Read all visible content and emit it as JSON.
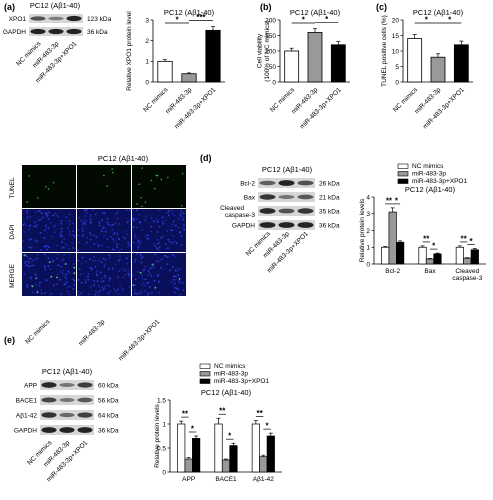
{
  "figure": {
    "panel_labels": [
      "(a)",
      "(b)",
      "(c)",
      "(d)",
      "(e)"
    ],
    "cell_line": "PC12 (Aβ1-40)",
    "group_labels": [
      "NC mimics",
      "miR-483-3p",
      "miR-483-3p+XPO1"
    ],
    "fluorescence": {
      "title": "PC12 (Aβ1-40)",
      "rows": [
        "TUNEL",
        "DAPI",
        "MERGE"
      ]
    },
    "blots": {
      "a": {
        "title": "PC12 (Aβ1-40)",
        "bands": [
          {
            "name": "XPO1",
            "size": "123 kDa"
          },
          {
            "name": "GAPDH",
            "size": "36 kDa"
          }
        ]
      },
      "d": {
        "title": "PC12 (Aβ1-40)",
        "bands": [
          {
            "name": "Bcl-2",
            "size": "26 kDa"
          },
          {
            "name": "Bax",
            "size": "21 kDa"
          },
          {
            "name": "Cleaved caspase-3",
            "size": "35 kDa"
          },
          {
            "name": "GAPDH",
            "size": "36 kDa"
          }
        ]
      },
      "e": {
        "title": "PC12 (Aβ1-40)",
        "bands": [
          {
            "name": "APP",
            "size": "60 kDa"
          },
          {
            "name": "BACE1",
            "size": "56 kDa"
          },
          {
            "name": "Aβ1-42",
            "size": "64 kDa"
          },
          {
            "name": "GAPDH",
            "size": "36 kDa"
          }
        ]
      }
    }
  },
  "chart_data": [
    {
      "id": "a",
      "type": "bar",
      "title": "PC12 (Aβ1-40)",
      "ylabel": "Relative XPO1 protein level",
      "categories": [
        "NC mimics",
        "miR-483-3p",
        "miR-483-3p+XPO1"
      ],
      "values": [
        1.0,
        0.4,
        2.5
      ],
      "errors": [
        0.08,
        0.04,
        0.18
      ],
      "ylim": [
        0,
        3
      ],
      "yticks": [
        0,
        1,
        2,
        3
      ],
      "colors": [
        "#ffffff",
        "#999999",
        "#000000"
      ],
      "significance": [
        {
          "from": 0,
          "to": 1,
          "label": "*"
        },
        {
          "from": 1,
          "to": 2,
          "label": "***"
        }
      ]
    },
    {
      "id": "b",
      "type": "bar",
      "title": "PC12 (Aβ1-40)",
      "ylabel": "Cell viability (100% of NC mimics)",
      "categories": [
        "NC mimics",
        "miR-483-3p",
        "miR-483-3p+XPO1"
      ],
      "values": [
        100,
        160,
        120
      ],
      "errors": [
        9,
        12,
        11
      ],
      "ylim": [
        0,
        200
      ],
      "yticks": [
        0,
        50,
        100,
        150,
        200
      ],
      "colors": [
        "#ffffff",
        "#999999",
        "#000000"
      ],
      "significance": [
        {
          "from": 0,
          "to": 1,
          "label": "*"
        },
        {
          "from": 1,
          "to": 2,
          "label": "*"
        }
      ]
    },
    {
      "id": "c",
      "type": "bar",
      "title": "PC12 (Aβ1-40)",
      "ylabel": "TUNEL positive cells (%)",
      "categories": [
        "NC mimics",
        "miR-483-3p",
        "miR-483-3p+XPO1"
      ],
      "values": [
        14,
        8,
        12
      ],
      "errors": [
        1.3,
        1.1,
        1.2
      ],
      "ylim": [
        0,
        20
      ],
      "yticks": [
        0,
        5,
        10,
        15,
        20
      ],
      "colors": [
        "#ffffff",
        "#999999",
        "#000000"
      ],
      "significance": [
        {
          "from": 0,
          "to": 1,
          "label": "*"
        },
        {
          "from": 1,
          "to": 2,
          "label": "*"
        }
      ]
    },
    {
      "id": "d",
      "type": "bar",
      "title": "PC12 (Aβ1-40)",
      "ylabel": "Relative protein levels",
      "categories": [
        "Bcl-2",
        "Bax",
        "Cleaved caspase-3"
      ],
      "series": [
        {
          "name": "NC mimics",
          "values": [
            1.0,
            1.0,
            1.0
          ],
          "errors": [
            0.05,
            0.08,
            0.08
          ]
        },
        {
          "name": "miR-483-3p",
          "values": [
            3.1,
            0.3,
            0.35
          ],
          "errors": [
            0.25,
            0.03,
            0.03
          ]
        },
        {
          "name": "miR-483-3p+XPO1",
          "values": [
            1.3,
            0.6,
            0.85
          ],
          "errors": [
            0.08,
            0.05,
            0.08
          ]
        }
      ],
      "ylim": [
        0,
        4
      ],
      "yticks": [
        0,
        1,
        2,
        3,
        4
      ],
      "colors": [
        "#ffffff",
        "#999999",
        "#000000"
      ],
      "legend": "top-right",
      "significance": [
        {
          "group": 0,
          "pairs": [
            [
              "**",
              0,
              1
            ],
            [
              "*",
              1,
              2
            ]
          ]
        },
        {
          "group": 1,
          "pairs": [
            [
              "**",
              0,
              1
            ],
            [
              "*",
              1,
              2
            ]
          ]
        },
        {
          "group": 2,
          "pairs": [
            [
              "**",
              0,
              1
            ],
            [
              "*",
              1,
              2
            ]
          ]
        }
      ]
    },
    {
      "id": "e",
      "type": "bar",
      "title": "PC12 (Aβ1-40)",
      "ylabel": "Relative protein levels",
      "categories": [
        "APP",
        "BACE1",
        "Aβ1-42"
      ],
      "series": [
        {
          "name": "NC mimics",
          "values": [
            1.0,
            1.0,
            1.0
          ],
          "errors": [
            0.06,
            0.12,
            0.07
          ]
        },
        {
          "name": "miR-483-3p",
          "values": [
            0.27,
            0.25,
            0.32
          ],
          "errors": [
            0.03,
            0.02,
            0.03
          ]
        },
        {
          "name": "miR-483-3p+XPO1",
          "values": [
            0.7,
            0.55,
            0.75
          ],
          "errors": [
            0.05,
            0.05,
            0.06
          ]
        }
      ],
      "ylim": [
        0,
        1.5
      ],
      "yticks": [
        0.0,
        0.5,
        1.0,
        1.5
      ],
      "colors": [
        "#ffffff",
        "#999999",
        "#000000"
      ],
      "legend": "top-right",
      "significance": [
        {
          "group": 0,
          "pairs": [
            [
              "**",
              0,
              1
            ],
            [
              "*",
              1,
              2
            ]
          ]
        },
        {
          "group": 1,
          "pairs": [
            [
              "**",
              0,
              1
            ],
            [
              "*",
              1,
              2
            ]
          ]
        },
        {
          "group": 2,
          "pairs": [
            [
              "**",
              0,
              1
            ],
            [
              "*",
              1,
              2
            ]
          ]
        }
      ]
    }
  ]
}
